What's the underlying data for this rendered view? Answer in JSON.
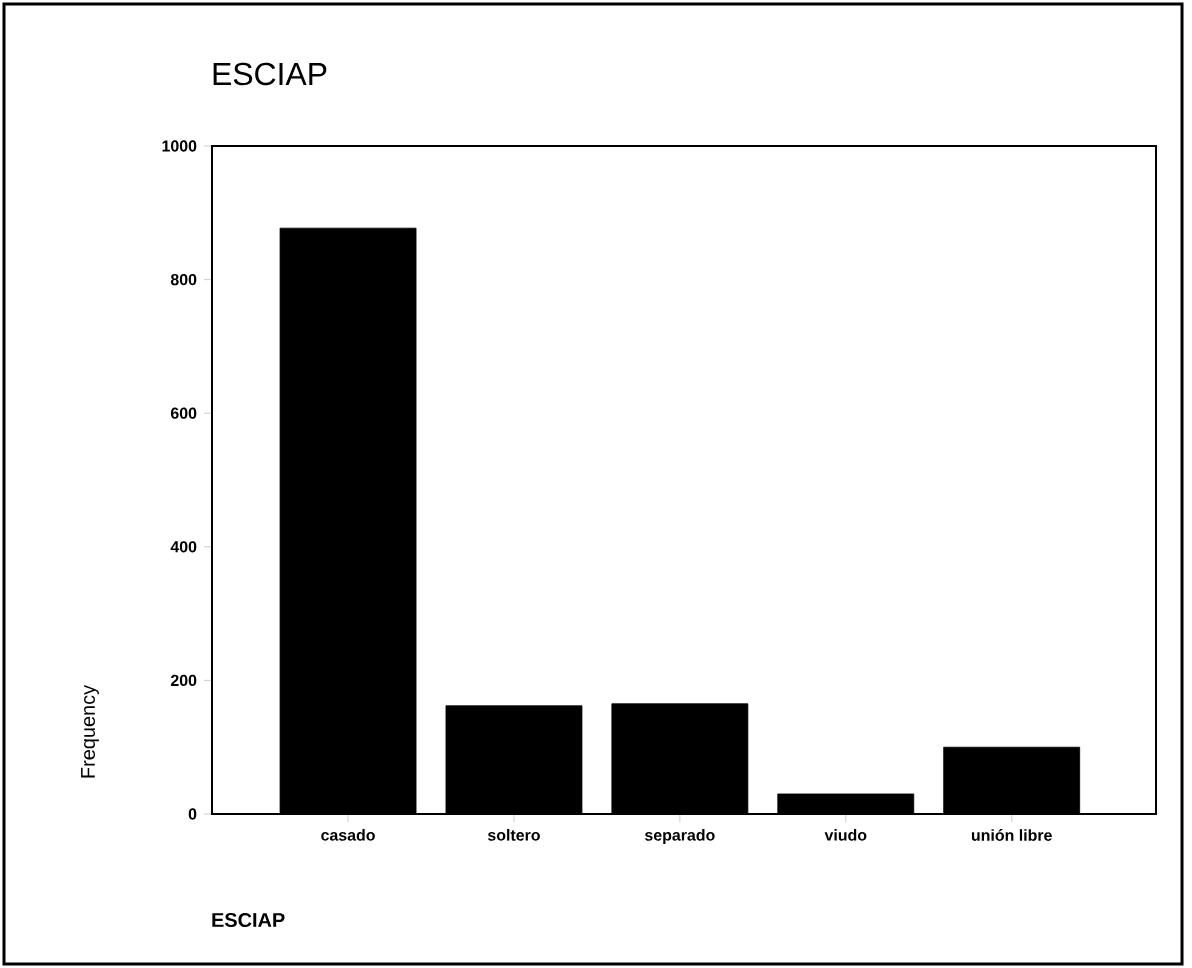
{
  "chart_data": {
    "type": "bar",
    "title": "ESCIAP",
    "xlabel": "ESCIAP",
    "ylabel": "Frequency",
    "categories": [
      "casado",
      "soltero",
      "separado",
      "viudo",
      "unión libre"
    ],
    "values": [
      877,
      162,
      165,
      30,
      100
    ],
    "color": "#000000",
    "ylim": [
      0,
      1000
    ],
    "yticks": [
      0,
      200,
      400,
      600,
      800,
      1000
    ],
    "grid": false
  }
}
